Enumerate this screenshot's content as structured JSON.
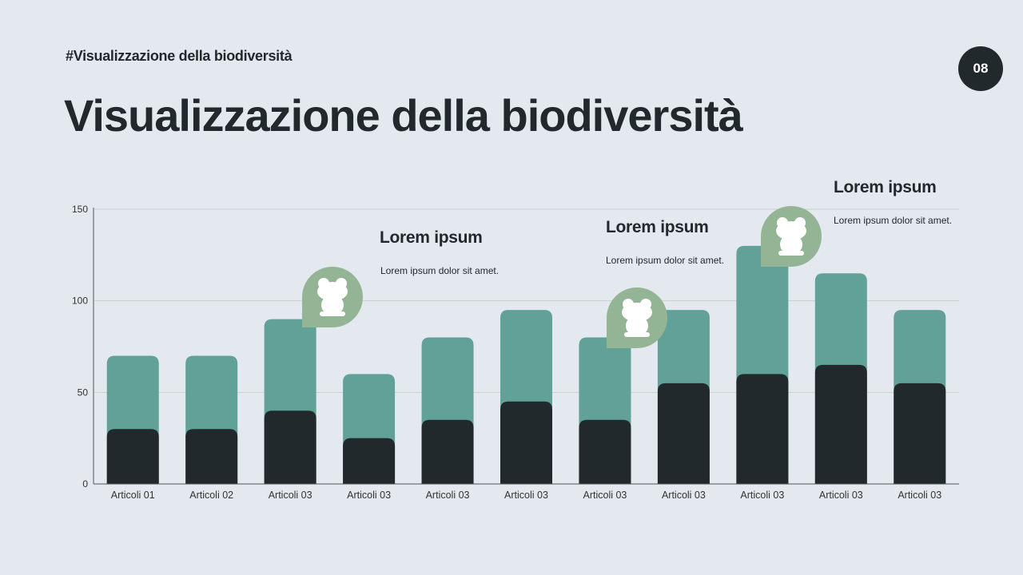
{
  "header": {
    "tag": "#Visualizzazione della biodiversità",
    "title": "Visualizzazione della biodiversità",
    "page_number": "08"
  },
  "colors": {
    "background": "#e3e9ee",
    "dark": "#22292c",
    "teal": "#61a198",
    "icon_bubble": "#93b596"
  },
  "callouts": [
    {
      "heading": "Lorem ipsum",
      "body": "Lorem ipsum dolor sit amet.",
      "icon": "frog-icon"
    },
    {
      "heading": "Lorem ipsum",
      "body": "Lorem ipsum dolor sit amet.",
      "icon": "frog-icon"
    },
    {
      "heading": "Lorem ipsum",
      "body": "Lorem ipsum dolor sit amet.",
      "icon": "frog-icon"
    }
  ],
  "chart_data": {
    "type": "bar",
    "stacked": false,
    "overlapping": true,
    "categories": [
      "Articoli 01",
      "Articoli 02",
      "Articoli 03",
      "Articoli 03",
      "Articoli 03",
      "Articoli 03",
      "Articoli 03",
      "Articoli 03",
      "Articoli 03",
      "Articoli 03",
      "Articoli 03"
    ],
    "series": [
      {
        "values": [
          70,
          70,
          90,
          60,
          80,
          95,
          80,
          95,
          130,
          115,
          95
        ],
        "color": "#61a198"
      },
      {
        "values": [
          30,
          30,
          40,
          25,
          35,
          45,
          35,
          55,
          60,
          65,
          55
        ],
        "color": "#22292c"
      }
    ],
    "ylim": [
      0,
      150
    ],
    "yticks": [
      0,
      50,
      100,
      150
    ],
    "grid": true,
    "legend": "none"
  }
}
